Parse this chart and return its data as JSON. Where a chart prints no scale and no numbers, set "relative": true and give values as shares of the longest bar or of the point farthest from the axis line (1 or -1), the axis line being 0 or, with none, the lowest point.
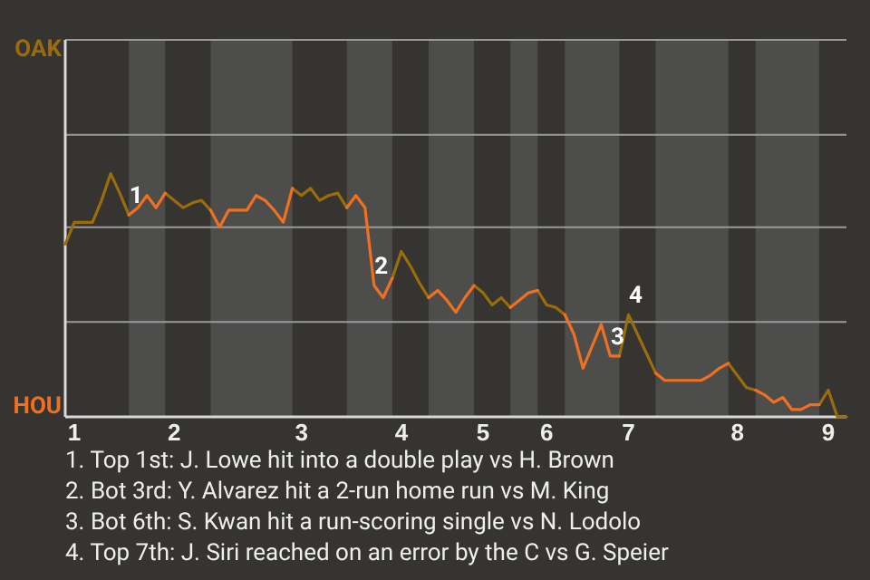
{
  "chart_data": {
    "type": "line",
    "relative": true,
    "categories": [
      null,
      "1",
      null,
      null,
      null,
      null,
      null,
      null,
      null,
      null,
      null,
      null,
      "2",
      null,
      null,
      null,
      null,
      null,
      null,
      null,
      null,
      null,
      null,
      null,
      null,
      null,
      "3",
      null,
      null,
      null,
      null,
      null,
      null,
      null,
      null,
      null,
      null,
      "4",
      null,
      null,
      null,
      null,
      null,
      null,
      null,
      null,
      "5",
      null,
      null,
      null,
      null,
      null,
      null,
      "6",
      null,
      null,
      null,
      null,
      null,
      null,
      null,
      null,
      "7",
      null,
      null,
      null,
      null,
      null,
      null,
      null,
      null,
      null,
      null,
      null,
      "8",
      null,
      null,
      null,
      null,
      null,
      null,
      null,
      null,
      null,
      "9",
      null,
      null
    ],
    "marker": "none",
    "line_style": "solid",
    "ref_lines": [
      {
        "axis": "y",
        "value": 0.39,
        "color": "#9a9a9a"
      },
      {
        "axis": "y",
        "value": 0.78,
        "color": "#9a9a9a"
      },
      {
        "axis": "y",
        "value": 1.16,
        "color": "#9a9a9a"
      },
      {
        "axis": "y",
        "value": 1.55,
        "color": "#9a9a9a"
      }
    ],
    "series": [
      {
        "name": "OAK",
        "color": "#9a6c0c",
        "values": [
          0.71,
          0.8,
          0.8,
          0.8,
          0.89,
          1,
          0.92,
          0.83,
          null,
          null,
          null,
          0.92,
          0.89,
          0.86,
          0.88,
          0.89,
          0.85,
          null,
          null,
          null,
          null,
          null,
          null,
          null,
          null,
          0.94,
          0.91,
          0.94,
          0.89,
          0.91,
          0.92,
          0.86,
          null,
          null,
          null,
          null,
          0.57,
          0.68,
          0.62,
          0.55,
          0.49,
          null,
          null,
          null,
          null,
          0.54,
          0.51,
          0.46,
          0.49,
          0.45,
          null,
          null,
          0.52,
          0.46,
          0.45,
          0.42,
          null,
          null,
          null,
          null,
          null,
          0.25,
          0.42,
          0.34,
          0.26,
          0.18,
          null,
          null,
          null,
          null,
          null,
          null,
          null,
          0.22,
          0.17,
          0.12,
          0.11,
          null,
          null,
          null,
          null,
          null,
          null,
          0.05,
          0.11,
          0,
          0
        ]
      },
      {
        "name": "HOU",
        "color": "#f07022",
        "values": [
          null,
          null,
          null,
          null,
          null,
          null,
          null,
          0.83,
          0.86,
          0.91,
          0.86,
          0.92,
          null,
          null,
          null,
          null,
          0.85,
          0.78,
          0.85,
          0.85,
          0.85,
          0.91,
          0.89,
          0.85,
          0.8,
          0.94,
          null,
          null,
          null,
          null,
          null,
          0.86,
          0.91,
          0.86,
          0.54,
          0.49,
          0.57,
          null,
          null,
          null,
          0.49,
          0.52,
          0.48,
          0.43,
          0.49,
          0.54,
          null,
          null,
          null,
          0.45,
          0.48,
          0.51,
          0.52,
          null,
          null,
          0.42,
          0.34,
          0.2,
          0.29,
          0.38,
          0.25,
          0.25,
          null,
          null,
          null,
          0.18,
          0.15,
          0.15,
          0.15,
          0.15,
          0.15,
          0.17,
          0.2,
          0.22,
          null,
          null,
          0.11,
          0.09,
          0.06,
          0.08,
          0.03,
          0.03,
          0.05,
          0.05,
          null,
          null,
          null
        ]
      }
    ],
    "annotations": [
      {
        "text": "1",
        "y": 0.83
      },
      {
        "text": "2",
        "y": 0.54
      },
      {
        "text": "3",
        "y": 0.25
      },
      {
        "text": "4",
        "y": 0.42
      },
      "1. Top 1st: J. Lowe hit into a double play vs H. Brown",
      "2. Bot 3rd: Y. Alvarez hit a 2-run home run vs M. King",
      "3. Bot 6th: S. Kwan hit a run-scoring single vs N. Lodolo",
      "4. Top 7th: J. Siri reached on an error by the C vs G. Speier"
    ]
  }
}
